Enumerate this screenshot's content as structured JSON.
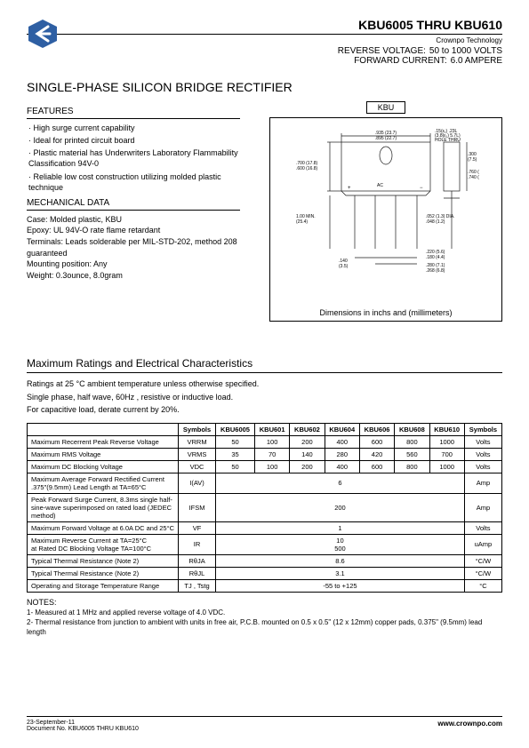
{
  "header": {
    "part_range": "KBU6005 THRU KBU610",
    "brand": "Crownpo Technology",
    "reverse_label": "REVERSE VOLTAGE:",
    "reverse_val": "50 to 1000 VOLTS",
    "forward_label": "FORWARD CURRENT:",
    "forward_val": "6.0 AMPERE"
  },
  "logo": {
    "bg": "#2e5fa3",
    "arrow": "#ffffff"
  },
  "title": "SINGLE-PHASE SILICON BRIDGE RECTIFIER",
  "features": {
    "title": "FEATURES",
    "items": [
      "High surge current capability",
      "Ideal for printed circuit board",
      "Plastic material has Underwriters Laboratory Flammability Classification 94V-0",
      "Reliable low cost construction utilizing molded plastic technique"
    ]
  },
  "mechanical": {
    "title": "MECHANICAL DATA",
    "lines": [
      "Case: Molded plastic, KBU",
      "Epoxy: UL 94V-O rate flame retardant",
      "Terminals: Leads solderable per MIL-STD-202, method 208 guaranteed",
      "Mounting position: Any",
      "Weight: 0.3ounce, 8.0gram"
    ]
  },
  "diagram": {
    "label": "KBU",
    "caption": "Dimensions in inchs and (millimeters)",
    "stroke": "#1a1a1a",
    "annotations": [
      ".15(ε₁) .23L",
      "(3.8(ε₁) 5.7L)",
      ".935 (23.7)",
      ".895 (22.7)",
      "HOLE THRU",
      ".300",
      "(7.5)",
      ".700 (17.8)",
      ".600 (16.8)",
      ".760 (19.6)",
      ".740 (18.8)",
      "AC",
      "1.00 MIN.",
      "(25.4)",
      ".052 (1.3) DIA.",
      ".048 (1.2)",
      ".140",
      "(3.5)",
      ".220 (5.6)",
      ".180 (4.4)",
      ".280 (7.1)",
      ".268 (6.8)"
    ]
  },
  "ratings": {
    "title": "Maximum Ratings and Electrical Characteristics",
    "intro": [
      "Ratings at 25 °C ambient temperature unless otherwise specified.",
      "Single phase, half wave, 60Hz , resistive or inductive load.",
      "For capacitive load, derate current by 20%."
    ],
    "columns": [
      "",
      "Symbols",
      "KBU6005",
      "KBU601",
      "KBU602",
      "KBU604",
      "KBU606",
      "KBU608",
      "KBU610",
      "Symbols"
    ],
    "rows": [
      {
        "param": "Maximum Recerrent Peak Reverse Voltage",
        "sym": "VRRM",
        "vals": [
          "50",
          "100",
          "200",
          "400",
          "600",
          "800",
          "1000"
        ],
        "unit": "Volts",
        "span": false
      },
      {
        "param": "Maximum RMS Voltage",
        "sym": "VRMS",
        "vals": [
          "35",
          "70",
          "140",
          "280",
          "420",
          "560",
          "700"
        ],
        "unit": "Volts",
        "span": false
      },
      {
        "param": "Maximum DC Blocking Voltage",
        "sym": "VDC",
        "vals": [
          "50",
          "100",
          "200",
          "400",
          "600",
          "800",
          "1000"
        ],
        "unit": "Volts",
        "span": false
      },
      {
        "param": "Maximum Average Forward Rectified Current .375\"(9.5mm) Lead Length at TA=65°C",
        "sym": "I(AV)",
        "vals": [
          "6"
        ],
        "unit": "Amp",
        "span": true
      },
      {
        "param": "Peak Forward Surge Current, 8.3ms single half-sine-wave superimposed on rated load (JEDEC method)",
        "sym": "IFSM",
        "vals": [
          "200"
        ],
        "unit": "Amp",
        "span": true
      },
      {
        "param": "Maximum Forward Voltage at 6.0A DC and 25°C",
        "sym": "VF",
        "vals": [
          "1"
        ],
        "unit": "Volts",
        "span": true
      },
      {
        "param": "Maximum Reverse Current        at TA=25°C\nat Rated DC Blocking Voltage        TA=100°C",
        "sym": "IR",
        "vals": [
          "10\n500"
        ],
        "unit": "uAmp",
        "span": true
      },
      {
        "param": "Typical Thermal Resistance (Note 2)",
        "sym": "RθJA",
        "vals": [
          "8.6"
        ],
        "unit": "°C/W",
        "span": true
      },
      {
        "param": "Typical Thermal Resistance (Note 2)",
        "sym": "RθJL",
        "vals": [
          "3.1"
        ],
        "unit": "°C/W",
        "span": true
      },
      {
        "param": "Operating and Storage Temperature Range",
        "sym": "TJ , Tstg",
        "vals": [
          "-55 to +125"
        ],
        "unit": "°C",
        "span": true
      }
    ]
  },
  "notes": {
    "title": "NOTES:",
    "items": [
      "1- Measured at 1 MHz and applied reverse voltage of 4.0 VDC.",
      "2- Thermal resistance from junction to ambient with units in free air, P.C.B. mounted on 0.5 x 0.5\" (12 x 12mm) copper pads, 0.375\" (9.5mm) lead length"
    ]
  },
  "footer": {
    "date": "23-September-11",
    "doc": "Document No. KBU6005 THRU KBU610",
    "url": "www.crownpo.com"
  }
}
